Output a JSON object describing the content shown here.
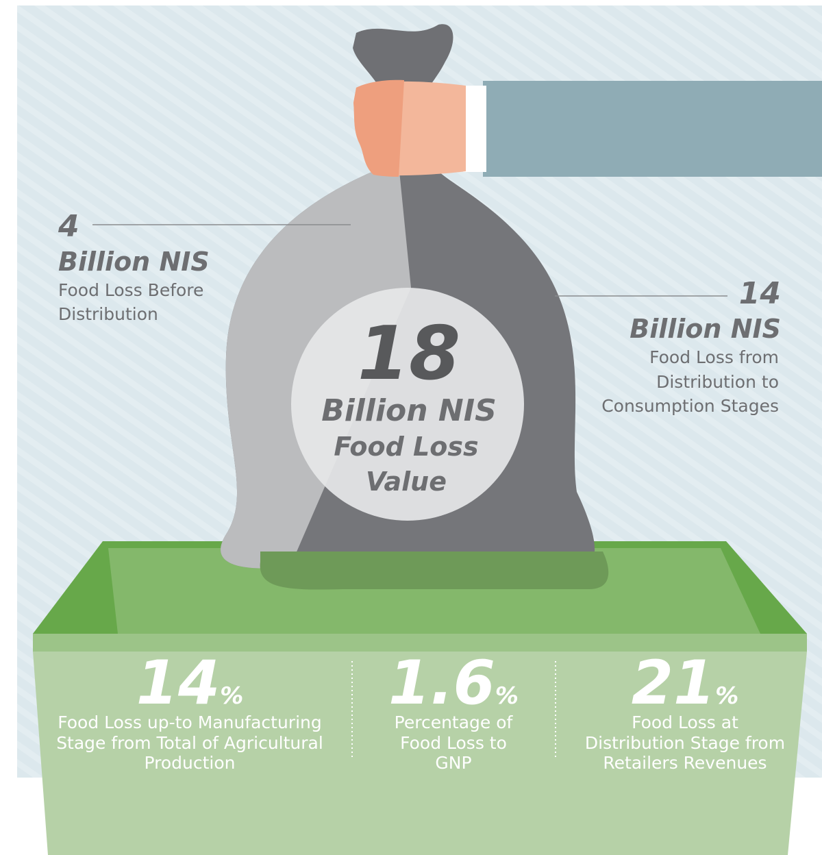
{
  "left": {
    "value": 4,
    "unit": "Billion NIS",
    "label_lines": [
      "Food Loss Before",
      "Distribution"
    ]
  },
  "right": {
    "value": 14,
    "unit": "Billion NIS",
    "label_lines": [
      "Food Loss from",
      "Distribution to",
      "Consumption Stages"
    ]
  },
  "center": {
    "value": 18,
    "unit": "Billion NIS",
    "label_lines": [
      "Food Loss",
      "Value"
    ]
  },
  "stats": [
    {
      "value": 14,
      "unit": "%",
      "label_lines": [
        "Food Loss up-to Manufacturing",
        "Stage from Total of Agricultural",
        "Production"
      ]
    },
    {
      "value": 1.6,
      "unit": "%",
      "label_lines": [
        "Percentage of",
        "Food Loss to",
        "GNP"
      ]
    },
    {
      "value": 21,
      "unit": "%",
      "label_lines": [
        "Food Loss at",
        "Distribution Stage from",
        "Retailers Revenues"
      ]
    }
  ]
}
